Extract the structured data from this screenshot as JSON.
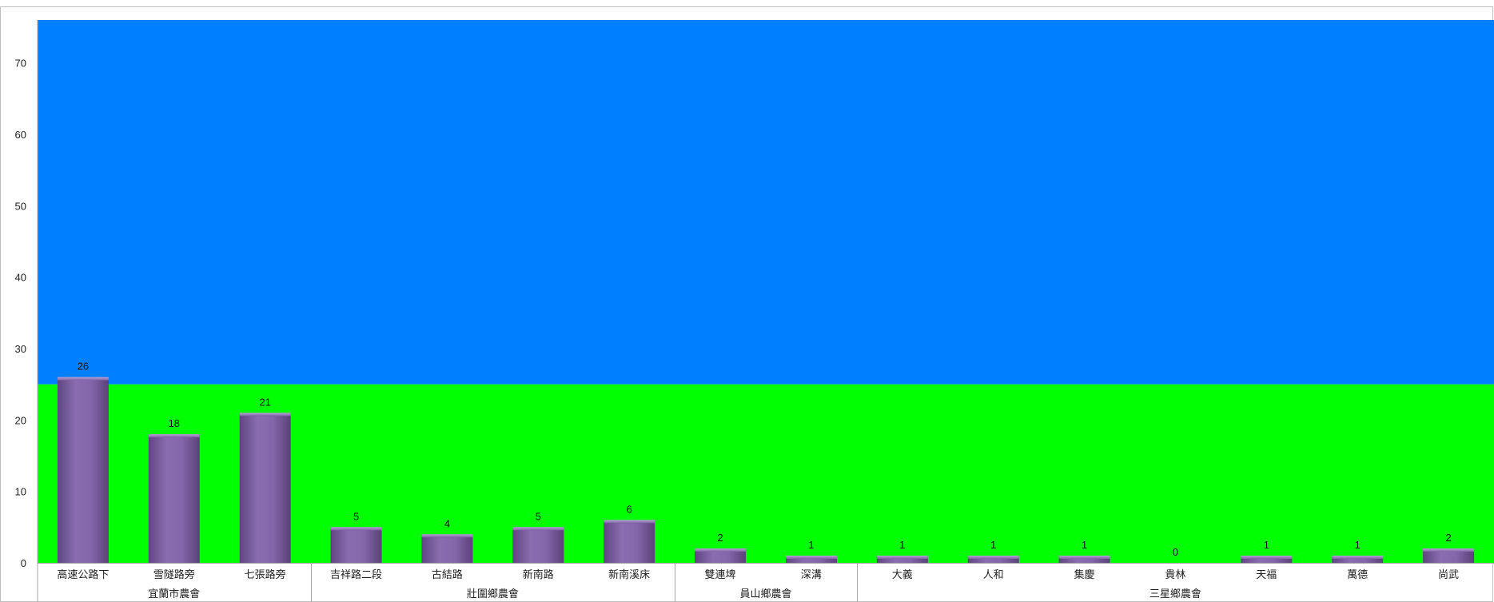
{
  "chart_data": {
    "type": "bar",
    "title": "",
    "xlabel": "",
    "ylabel": "",
    "ylim": [
      0,
      76
    ],
    "yticks": [
      0,
      10,
      20,
      30,
      40,
      50,
      60,
      70
    ],
    "grid": false,
    "background_bands": [
      {
        "from": 0,
        "to": 25,
        "color": "#00ff00"
      },
      {
        "from": 25,
        "to": 76,
        "color": "#0080ff"
      }
    ],
    "bar_color": "#8064a2",
    "groups": [
      {
        "label": "宜蘭市農會",
        "categories": [
          "高速公路下",
          "雪隧路旁",
          "七張路旁"
        ],
        "values": [
          26,
          18,
          21
        ]
      },
      {
        "label": "壯圍鄉農會",
        "categories": [
          "吉祥路二段",
          "古結路",
          "新南路",
          "新南溪床"
        ],
        "values": [
          5,
          4,
          5,
          6
        ]
      },
      {
        "label": "員山鄉農會",
        "categories": [
          "雙連埤",
          "深溝"
        ],
        "values": [
          2,
          1
        ]
      },
      {
        "label": "三星鄉農會",
        "categories": [
          "大義",
          "人和",
          "集慶",
          "貴林",
          "天福",
          "萬德",
          "尚武"
        ],
        "values": [
          1,
          1,
          1,
          0,
          1,
          1,
          2
        ]
      }
    ]
  }
}
